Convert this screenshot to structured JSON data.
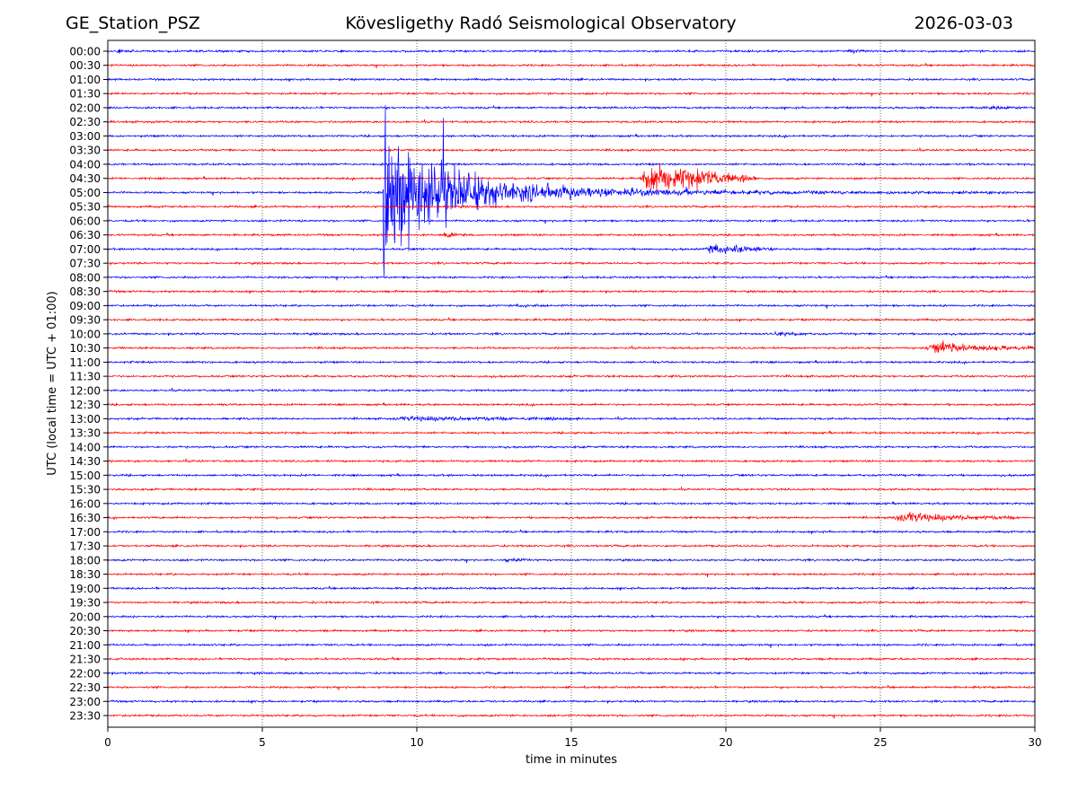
{
  "header": {
    "station": "GE_Station_PSZ",
    "observatory": "Kövesligethy Radó Seismological Observatory",
    "date": "2026-03-03"
  },
  "colors": {
    "trace_a": "#0000ff",
    "trace_b": "#ff0000",
    "grid": "#000000"
  },
  "chart_data": {
    "type": "line",
    "subtype": "helicorder",
    "title": "Kövesligethy Radó Seismological Observatory",
    "xlabel": "time in minutes",
    "ylabel": "UTC (local time = UTC + 01:00)",
    "xlim": [
      0,
      30
    ],
    "xticks": [
      "0",
      "5",
      "10",
      "15",
      "20",
      "25",
      "30"
    ],
    "grid": "vertical dotted at 5-minute ticks",
    "rows": [
      "00:00",
      "00:30",
      "01:00",
      "01:30",
      "02:00",
      "02:30",
      "03:00",
      "03:30",
      "04:00",
      "04:30",
      "05:00",
      "05:30",
      "06:00",
      "06:30",
      "07:00",
      "07:30",
      "08:00",
      "08:30",
      "09:00",
      "09:30",
      "10:00",
      "10:30",
      "11:00",
      "11:30",
      "12:00",
      "12:30",
      "13:00",
      "13:30",
      "14:00",
      "14:30",
      "15:00",
      "15:30",
      "16:00",
      "16:30",
      "17:00",
      "17:30",
      "18:00",
      "18:30",
      "19:00",
      "19:30",
      "20:00",
      "20:30",
      "21:00",
      "21:30",
      "22:00",
      "22:30",
      "23:00",
      "23:30"
    ],
    "row_colors": [
      "blue",
      "red"
    ],
    "events": [
      {
        "row": "00:00",
        "start": 0.2,
        "end": 0.9,
        "amplitude": 0.15
      },
      {
        "row": "00:00",
        "start": 23.9,
        "end": 25.0,
        "amplitude": 0.12
      },
      {
        "row": "02:00",
        "start": 28.3,
        "end": 30.0,
        "amplitude": 0.15
      },
      {
        "row": "04:30",
        "start": 17.2,
        "end": 21.0,
        "amplitude": 1.6
      },
      {
        "row": "05:00",
        "start": 8.9,
        "end": 30.0,
        "amplitude": 4.2
      },
      {
        "row": "06:30",
        "start": 10.8,
        "end": 11.6,
        "amplitude": 0.25
      },
      {
        "row": "07:00",
        "start": 19.3,
        "end": 21.6,
        "amplitude": 0.5
      },
      {
        "row": "09:00",
        "start": 13.2,
        "end": 13.9,
        "amplitude": 0.15
      },
      {
        "row": "10:00",
        "start": 21.5,
        "end": 22.6,
        "amplitude": 0.15
      },
      {
        "row": "10:30",
        "start": 26.4,
        "end": 30.0,
        "amplitude": 0.5
      },
      {
        "row": "13:00",
        "start": 9.1,
        "end": 15.5,
        "amplitude": 0.2
      },
      {
        "row": "16:30",
        "start": 25.3,
        "end": 29.5,
        "amplitude": 0.45
      },
      {
        "row": "18:00",
        "start": 12.8,
        "end": 13.7,
        "amplitude": 0.18
      }
    ]
  }
}
